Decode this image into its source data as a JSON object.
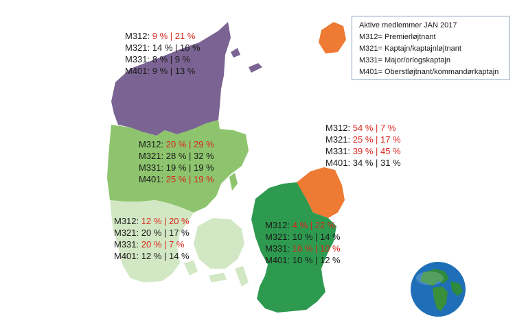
{
  "colors": {
    "north": "#7b6493",
    "mid": "#8dc46d",
    "south": "#d2e7c4",
    "zealand": "#2e9a50",
    "capital": "#ef7a33",
    "highlight": "#d9261c"
  },
  "legend": {
    "title": "Aktive medlemmer  JAN 2017",
    "items": [
      "M312= Premierløjtnant",
      "M321= Kaptajn/kaptajnløjtnant",
      "M331= Major/orlogskaptajn",
      "M401= Oberstløjtnant/kommandørkaptajn"
    ]
  },
  "regions": [
    {
      "key": "north",
      "rows": [
        {
          "code": "M312:",
          "v1": "9 %",
          "sep": " | ",
          "v2": "21 %",
          "highlight": true
        },
        {
          "code": "M321:",
          "v1": "14 %",
          "sep": " | ",
          "v2": "16 %",
          "highlight": false
        },
        {
          "code": "M331:",
          "v1": "8 %",
          "sep": "  | ",
          "v2": "9 %",
          "highlight": false
        },
        {
          "code": "M401:",
          "v1": "9 %",
          "sep": "  | ",
          "v2": "13 %",
          "highlight": false
        }
      ]
    },
    {
      "key": "mid",
      "rows": [
        {
          "code": "M312:",
          "v1": "20 %",
          "sep": " | ",
          "v2": "29 %",
          "highlight": true
        },
        {
          "code": "M321:",
          "v1": "28 %",
          "sep": " | ",
          "v2": "32 %",
          "highlight": false
        },
        {
          "code": "M331:",
          "v1": "19 %",
          "sep": " | ",
          "v2": "19 %",
          "highlight": false
        },
        {
          "code": "M401:",
          "v1": "25 %",
          "sep": " | ",
          "v2": "19 %",
          "highlight": true
        }
      ]
    },
    {
      "key": "south",
      "rows": [
        {
          "code": "M312:",
          "v1": "12 %",
          "sep": " | ",
          "v2": "20 %",
          "highlight": true
        },
        {
          "code": "M321:",
          "v1": "20 %",
          "sep": " | ",
          "v2": "17 %",
          "highlight": false
        },
        {
          "code": "M331:",
          "v1": "20 %",
          "sep": " | ",
          "v2": "7 %",
          "highlight": true
        },
        {
          "code": "M401:",
          "v1": "12 %",
          "sep": " | ",
          "v2": "14 %",
          "highlight": false
        }
      ]
    },
    {
      "key": "zealand",
      "rows": [
        {
          "code": "M312:",
          "v1": "4 %",
          "sep": "  | ",
          "v2": "22 %",
          "highlight": true
        },
        {
          "code": "M321:",
          "v1": "10 %",
          "sep": " | ",
          "v2": "14 %",
          "highlight": false
        },
        {
          "code": "M331:",
          "v1": "16 %",
          "sep": " | ",
          "v2": "10 %",
          "highlight": true
        },
        {
          "code": "M401:",
          "v1": "10 %",
          "sep": " | ",
          "v2": "12 %",
          "highlight": false
        }
      ]
    },
    {
      "key": "capital",
      "rows": [
        {
          "code": "M312:",
          "v1": "54 %",
          "sep": " | ",
          "v2": "7 %",
          "highlight": true
        },
        {
          "code": "M321:",
          "v1": "25 %",
          "sep": " | ",
          "v2": "17 %",
          "highlight": true
        },
        {
          "code": "M331:",
          "v1": "39 %",
          "sep": " | ",
          "v2": "45 %",
          "highlight": true
        },
        {
          "code": "M401:",
          "v1": "34 %",
          "sep": " | ",
          "v2": "31 %",
          "highlight": false
        }
      ]
    }
  ]
}
